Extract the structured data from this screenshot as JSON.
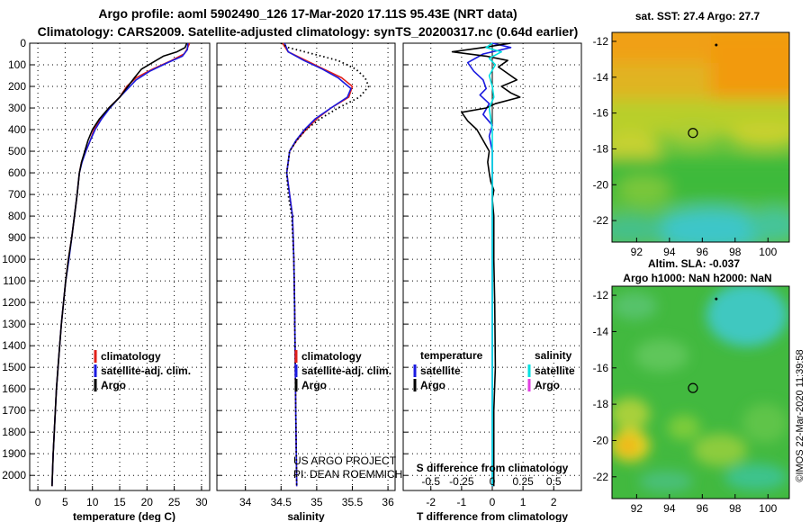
{
  "header": {
    "line1": "Argo profile: aoml 5902490_126 17-Mar-2020 17.11S 95.43E (NRT data)",
    "line2": "Climatology: CARS2009. Satellite-adjusted climatology: synTS_20200317.nc (0.64d earlier)"
  },
  "colors": {
    "climatology": "#e0201a",
    "satellite": "#1a1ae0",
    "argo": "#000000",
    "salinity_sat": "#00e0e0",
    "salinity_argo": "#e040e0"
  },
  "chart_data": [
    {
      "type": "line",
      "id": "temperature",
      "xlabel": "temperature (deg C)",
      "xlim": [
        -1.5,
        31.5
      ],
      "ylim": [
        0,
        2070
      ],
      "xticks": [
        0,
        5,
        10,
        15,
        20,
        25,
        30
      ],
      "yticks": [
        0,
        100,
        200,
        300,
        400,
        500,
        600,
        700,
        800,
        900,
        1000,
        1100,
        1200,
        1300,
        1400,
        1500,
        1600,
        1700,
        1800,
        1900,
        2000
      ],
      "legend": [
        "climatology",
        "satellite-adj. clim.",
        "Argo"
      ],
      "series": [
        {
          "name": "climatology",
          "style": "solid",
          "color": "#e0201a",
          "points": [
            [
              27.8,
              0
            ],
            [
              27.3,
              30
            ],
            [
              26.8,
              50
            ],
            [
              24.5,
              80
            ],
            [
              21,
              120
            ],
            [
              18,
              160
            ],
            [
              16.3,
              200
            ],
            [
              15,
              250
            ],
            [
              13,
              300
            ],
            [
              11.5,
              350
            ],
            [
              10.3,
              400
            ],
            [
              9.6,
              450
            ],
            [
              8.8,
              500
            ],
            [
              8,
              550
            ],
            [
              7.6,
              600
            ],
            [
              7.2,
              700
            ],
            [
              6.7,
              800
            ],
            [
              6.2,
              900
            ],
            [
              5.6,
              1000
            ],
            [
              5.1,
              1100
            ],
            [
              4.7,
              1200
            ],
            [
              4.3,
              1300
            ],
            [
              4,
              1400
            ],
            [
              3.7,
              1500
            ],
            [
              3.4,
              1600
            ],
            [
              3.2,
              1700
            ],
            [
              3,
              1800
            ],
            [
              2.8,
              1900
            ],
            [
              2.6,
              2050
            ]
          ]
        },
        {
          "name": "satellite-adj. clim.",
          "style": "solid",
          "color": "#1a1ae0",
          "points": [
            [
              27.5,
              0
            ],
            [
              27.4,
              30
            ],
            [
              26.5,
              60
            ],
            [
              23.8,
              90
            ],
            [
              20.5,
              130
            ],
            [
              18,
              170
            ],
            [
              16.5,
              210
            ],
            [
              15,
              250
            ],
            [
              13.2,
              300
            ],
            [
              11.7,
              350
            ],
            [
              10.5,
              400
            ],
            [
              9.6,
              450
            ],
            [
              8.8,
              500
            ],
            [
              8.1,
              550
            ],
            [
              7.6,
              600
            ],
            [
              7.2,
              700
            ],
            [
              6.7,
              800
            ],
            [
              6.2,
              900
            ],
            [
              5.7,
              1000
            ],
            [
              5.1,
              1100
            ],
            [
              4.7,
              1200
            ],
            [
              4.3,
              1300
            ],
            [
              4,
              1400
            ],
            [
              3.7,
              1500
            ],
            [
              3.4,
              1600
            ],
            [
              3.2,
              1700
            ],
            [
              3,
              1800
            ],
            [
              2.8,
              1900
            ],
            [
              2.6,
              2050
            ]
          ]
        },
        {
          "name": "Argo",
          "style": "solid",
          "color": "#000000",
          "points": [
            [
              27.3,
              0
            ],
            [
              27,
              20
            ],
            [
              25.5,
              40
            ],
            [
              23,
              60
            ],
            [
              21,
              90
            ],
            [
              19,
              120
            ],
            [
              17.7,
              160
            ],
            [
              16.5,
              200
            ],
            [
              15,
              250
            ],
            [
              13,
              300
            ],
            [
              11.3,
              350
            ],
            [
              10,
              400
            ],
            [
              9.2,
              450
            ],
            [
              8.6,
              500
            ],
            [
              8,
              550
            ],
            [
              7.6,
              600
            ],
            [
              7.2,
              700
            ],
            [
              6.7,
              800
            ],
            [
              6.2,
              900
            ],
            [
              5.6,
              1000
            ],
            [
              5.1,
              1100
            ],
            [
              4.7,
              1200
            ],
            [
              4.3,
              1300
            ],
            [
              4,
              1400
            ],
            [
              3.7,
              1500
            ],
            [
              3.4,
              1600
            ],
            [
              3.2,
              1700
            ],
            [
              3,
              1800
            ],
            [
              2.8,
              1900
            ],
            [
              2.6,
              2050
            ]
          ]
        }
      ]
    },
    {
      "type": "line",
      "id": "salinity",
      "xlabel": "salinity",
      "xlim": [
        33.6,
        36.1
      ],
      "ylim": [
        0,
        2070
      ],
      "xticks": [
        34,
        34.5,
        35,
        35.5,
        36
      ],
      "legend": [
        "climatology",
        "satellite-adj. clim.",
        "Argo"
      ],
      "annotations": [
        "US ARGO PROJECT",
        "PI: DEAN ROEMMICH"
      ],
      "series": [
        {
          "name": "climatology",
          "style": "solid",
          "color": "#e0201a",
          "points": [
            [
              34.52,
              0
            ],
            [
              34.6,
              40
            ],
            [
              34.85,
              80
            ],
            [
              35.1,
              120
            ],
            [
              35.35,
              160
            ],
            [
              35.5,
              200
            ],
            [
              35.45,
              250
            ],
            [
              35.2,
              300
            ],
            [
              35.0,
              350
            ],
            [
              34.85,
              400
            ],
            [
              34.72,
              450
            ],
            [
              34.62,
              500
            ],
            [
              34.58,
              600
            ],
            [
              34.62,
              700
            ],
            [
              34.66,
              800
            ],
            [
              34.68,
              1000
            ],
            [
              34.69,
              1200
            ],
            [
              34.7,
              1500
            ],
            [
              34.71,
              1800
            ],
            [
              34.72,
              2050
            ]
          ]
        },
        {
          "name": "satellite-adj. clim.",
          "style": "solid",
          "color": "#1a1ae0",
          "points": [
            [
              34.55,
              0
            ],
            [
              34.6,
              40
            ],
            [
              34.82,
              80
            ],
            [
              35.08,
              120
            ],
            [
              35.3,
              160
            ],
            [
              35.48,
              210
            ],
            [
              35.43,
              250
            ],
            [
              35.2,
              300
            ],
            [
              34.98,
              350
            ],
            [
              34.83,
              400
            ],
            [
              34.71,
              450
            ],
            [
              34.62,
              500
            ],
            [
              34.58,
              600
            ],
            [
              34.62,
              700
            ],
            [
              34.66,
              800
            ],
            [
              34.68,
              1000
            ],
            [
              34.69,
              1200
            ],
            [
              34.7,
              1500
            ],
            [
              34.71,
              1800
            ],
            [
              34.72,
              2050
            ]
          ]
        },
        {
          "name": "Argo",
          "style": "dotted",
          "color": "#000000",
          "points": [
            [
              34.5,
              0
            ],
            [
              34.6,
              20
            ],
            [
              34.95,
              50
            ],
            [
              35.3,
              80
            ],
            [
              35.55,
              120
            ],
            [
              35.68,
              160
            ],
            [
              35.73,
              200
            ],
            [
              35.6,
              250
            ],
            [
              35.3,
              300
            ],
            [
              35.05,
              350
            ],
            [
              34.85,
              400
            ],
            [
              34.72,
              450
            ],
            [
              34.62,
              500
            ],
            [
              34.58,
              600
            ],
            [
              34.6,
              700
            ],
            [
              34.65,
              800
            ],
            [
              34.68,
              1000
            ],
            [
              34.69,
              1200
            ],
            [
              34.7,
              1500
            ],
            [
              34.71,
              1800
            ],
            [
              34.72,
              2050
            ]
          ]
        }
      ]
    },
    {
      "type": "line",
      "id": "difference",
      "xlabel": "T difference from climatology",
      "xlabel_top": "S difference from climatology",
      "xlim": [
        -2.9,
        2.9
      ],
      "ylim": [
        0,
        2070
      ],
      "xticks": [
        -2,
        -1,
        0,
        1,
        2
      ],
      "xticks_s": [
        "-0.5",
        "-0.25",
        "0",
        "0.25",
        "0.5"
      ],
      "legend_titles": [
        "temperature",
        "salinity"
      ],
      "legend_t": [
        "satellite",
        "Argo"
      ],
      "legend_s": [
        "satellite",
        "Argo"
      ],
      "series": [
        {
          "name": "temperature satellite",
          "style": "solid",
          "color": "#1a1ae0",
          "points": [
            [
              0,
              0
            ],
            [
              0.6,
              20
            ],
            [
              -0.3,
              50
            ],
            [
              -0.8,
              90
            ],
            [
              -0.6,
              130
            ],
            [
              -0.3,
              170
            ],
            [
              -0.2,
              210
            ],
            [
              -0.4,
              240
            ],
            [
              -0.1,
              280
            ],
            [
              -0.3,
              330
            ],
            [
              0,
              380
            ],
            [
              -0.1,
              430
            ],
            [
              0,
              500
            ],
            [
              0,
              600
            ],
            [
              0,
              800
            ],
            [
              0,
              1000
            ],
            [
              0,
              2050
            ]
          ]
        },
        {
          "name": "temperature Argo",
          "style": "solid",
          "color": "#000000",
          "points": [
            [
              0.6,
              0
            ],
            [
              -0.3,
              20
            ],
            [
              -1.3,
              40
            ],
            [
              -0.2,
              60
            ],
            [
              0.5,
              80
            ],
            [
              0.2,
              110
            ],
            [
              0.5,
              140
            ],
            [
              0.8,
              170
            ],
            [
              0.3,
              200
            ],
            [
              0.6,
              230
            ],
            [
              0.9,
              250
            ],
            [
              0.1,
              280
            ],
            [
              -0.2,
              300
            ],
            [
              -1.0,
              320
            ],
            [
              -0.8,
              360
            ],
            [
              -0.5,
              400
            ],
            [
              -0.3,
              450
            ],
            [
              -0.1,
              500
            ],
            [
              -0.15,
              550
            ],
            [
              -0.1,
              600
            ],
            [
              -0.05,
              640
            ],
            [
              0.05,
              680
            ],
            [
              0,
              720
            ],
            [
              0.05,
              800
            ],
            [
              0.05,
              1000
            ],
            [
              0.08,
              1200
            ],
            [
              0.1,
              1500
            ],
            [
              0.05,
              1700
            ],
            [
              0.05,
              2050
            ]
          ]
        },
        {
          "name": "salinity satellite",
          "style": "solid",
          "color": "#00e0e0",
          "points": [
            [
              0,
              0
            ],
            [
              -0.2,
              20
            ],
            [
              0.3,
              40
            ],
            [
              -0.1,
              70
            ],
            [
              0.1,
              100
            ],
            [
              -0.1,
              150
            ],
            [
              0,
              200
            ],
            [
              0.05,
              250
            ],
            [
              -0.1,
              300
            ],
            [
              0,
              400
            ],
            [
              0,
              600
            ],
            [
              0,
              1000
            ],
            [
              0,
              2050
            ]
          ]
        }
      ]
    },
    {
      "type": "heatmap",
      "id": "sst-map",
      "title": "sat. SST: 27.4 Argo: 27.7",
      "xticks": [
        92,
        94,
        96,
        98,
        100
      ],
      "yticks": [
        -12,
        -14,
        -16,
        -18,
        -20,
        -22
      ],
      "xlim": [
        90.5,
        101.3
      ],
      "ylim": [
        -23.2,
        -11.5
      ],
      "marker": {
        "lon": 95.43,
        "lat": -17.11
      }
    },
    {
      "type": "heatmap",
      "id": "sla-map",
      "title": "Altim. SLA: -0.037",
      "subtitle": "Argo h1000: NaN h2000: NaN",
      "xticks": [
        92,
        94,
        96,
        98,
        100
      ],
      "yticks": [
        -12,
        -14,
        -16,
        -18,
        -20,
        -22
      ],
      "xlim": [
        90.5,
        101.3
      ],
      "ylim": [
        -23.2,
        -11.5
      ],
      "marker": {
        "lon": 95.43,
        "lat": -17.11
      }
    }
  ],
  "side_label": "©IMOS 22-Mar-2020 11:39:58"
}
